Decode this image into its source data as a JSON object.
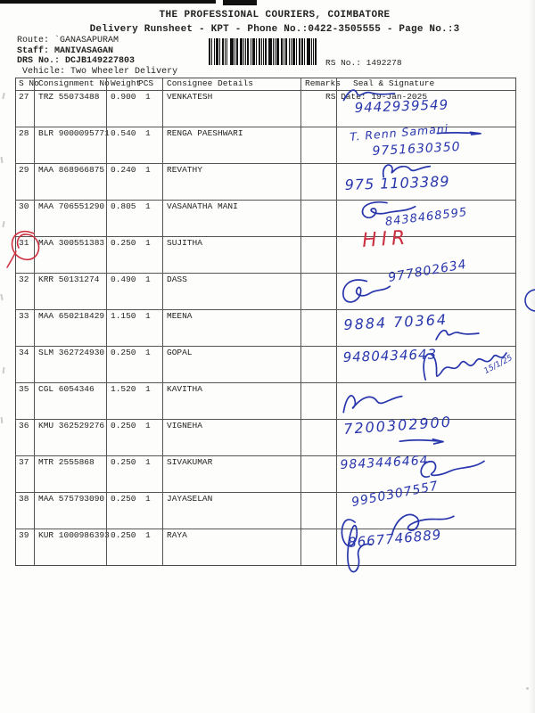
{
  "page": {
    "title": "THE PROFESSIONAL COURIERS, COIMBATORE",
    "subtitle": "Delivery Runsheet - KPT - Phone No.:0422-3505555 - Page No.:3"
  },
  "meta": {
    "route_label": "Route:",
    "route_value": "`GANASAPURAM",
    "staff_label": "Staff:",
    "staff_value": "MANIVASAGAN",
    "drs_label": "DRS No.:",
    "drs_value": "DCJB149227803",
    "vehicle_label": "Vehicle:",
    "vehicle_value": "Two Wheeler Delivery",
    "rs_no_label": "RS No.:",
    "rs_no_value": "1492278",
    "rs_date_label": "RS Date:",
    "rs_date_value": "19-Jan-2025",
    "barcode": "barcode"
  },
  "table": {
    "headers": {
      "sno": "S No",
      "consignment": "Consignment No",
      "weight": "Weight",
      "pcs": "PCS",
      "consignee": "Consignee Details",
      "remarks": "Remarks",
      "seal": "Seal & Signature"
    },
    "rows": [
      {
        "sno": "27",
        "consignment": "TRZ 55073488",
        "weight": "0.900",
        "pcs": "1",
        "consignee": "VENKATESH",
        "remarks": "",
        "handwriting": {
          "phone": "9442939549",
          "ink": "blue"
        }
      },
      {
        "sno": "28",
        "consignment": "BLR 9000095771",
        "weight": "0.540",
        "pcs": "1",
        "consignee": "RENGA PAESHWARI",
        "remarks": "",
        "handwriting": {
          "sig": "T. Renn Samani",
          "phone": "9751630350",
          "ink": "blue"
        }
      },
      {
        "sno": "29",
        "consignment": "MAA 868966875",
        "weight": "0.240",
        "pcs": "1",
        "consignee": "REVATHY",
        "remarks": "",
        "handwriting": {
          "phone": "975 1103389",
          "ink": "blue"
        }
      },
      {
        "sno": "30",
        "consignment": "MAA 706551290",
        "weight": "0.805",
        "pcs": "1",
        "consignee": "VASANATHA MANI",
        "remarks": "",
        "handwriting": {
          "phone": "8438468595",
          "ink": "blue"
        }
      },
      {
        "sno": "31",
        "consignment": "MAA 300551383",
        "weight": "0.250",
        "pcs": "1",
        "consignee": "SUJITHA",
        "remarks": "",
        "handwriting": {
          "red_note": "HIR",
          "ink": "red"
        }
      },
      {
        "sno": "32",
        "consignment": "KRR 50131274",
        "weight": "0.490",
        "pcs": "1",
        "consignee": "DASS",
        "remarks": "",
        "handwriting": {
          "phone": "977802634",
          "ink": "blue"
        }
      },
      {
        "sno": "33",
        "consignment": "MAA 650218429",
        "weight": "1.150",
        "pcs": "1",
        "consignee": "MEENA",
        "remarks": "",
        "handwriting": {
          "phone": "9884 70364",
          "ink": "blue"
        }
      },
      {
        "sno": "34",
        "consignment": "SLM 362724930",
        "weight": "0.250",
        "pcs": "1",
        "consignee": "GOPAL",
        "remarks": "",
        "handwriting": {
          "phone": "9480434643",
          "note": "15/1/25",
          "ink": "blue"
        }
      },
      {
        "sno": "35",
        "consignment": "CGL 6054346",
        "weight": "1.520",
        "pcs": "1",
        "consignee": "KAVITHA",
        "remarks": "",
        "handwriting": {
          "ink": "blue"
        }
      },
      {
        "sno": "36",
        "consignment": "KMU 362529276",
        "weight": "0.250",
        "pcs": "1",
        "consignee": "VIGNEHA",
        "remarks": "",
        "handwriting": {
          "phone": "7200302900",
          "ink": "blue"
        }
      },
      {
        "sno": "37",
        "consignment": "MTR 2555868",
        "weight": "0.250",
        "pcs": "1",
        "consignee": "SIVAKUMAR",
        "remarks": "",
        "handwriting": {
          "phone": "9843446464",
          "ink": "blue"
        }
      },
      {
        "sno": "38",
        "consignment": "MAA 575793090",
        "weight": "0.250",
        "pcs": "1",
        "consignee": "JAYASELAN",
        "remarks": "",
        "handwriting": {
          "phone": "9950307557",
          "ink": "blue"
        }
      },
      {
        "sno": "39",
        "consignment": "KUR 1000986393",
        "weight": "0.250",
        "pcs": "1",
        "consignee": "RAYA",
        "remarks": "",
        "handwriting": {
          "phone": "8667746889",
          "ink": "blue"
        }
      }
    ]
  },
  "annotations": {
    "circled_serial": "31",
    "red_delivery_mark": "HIR",
    "date_note": "15/1/25"
  },
  "colors": {
    "ink_blue": "#2836ac",
    "ink_red": "#cd3040",
    "paper": "#fdfdfc",
    "grid_line": "#555555"
  }
}
